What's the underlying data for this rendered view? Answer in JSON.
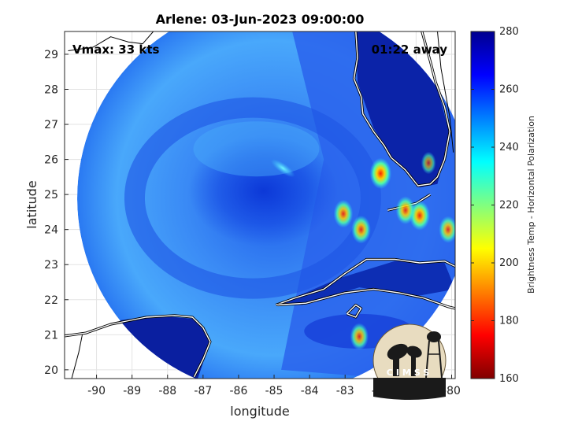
{
  "chart_data": {
    "type": "heatmap",
    "title": "Arlene: 03-Jun-2023 09:00:00",
    "xlabel": "longitude",
    "ylabel": "latitude",
    "xlim": [
      -90.9,
      -79.9
    ],
    "ylim": [
      19.75,
      29.65
    ],
    "x_ticks": [
      -90,
      -89,
      -88,
      -87,
      -86,
      -85,
      -84,
      -83,
      -82,
      -81,
      -80
    ],
    "y_ticks": [
      20,
      21,
      22,
      23,
      24,
      25,
      26,
      27,
      28,
      29
    ],
    "grid": true,
    "annotations": {
      "vmax": "Vmax: 33 kts",
      "time_offset": "01:22 away",
      "logo_text": "CIMSS"
    },
    "colorbar": {
      "label": "Brightness Temp - Horizontal Polarization",
      "range": [
        160,
        280
      ],
      "ticks": [
        160,
        180,
        200,
        220,
        240,
        260,
        280
      ],
      "colormap": "jet"
    },
    "swath": {
      "center_lon": -85.0,
      "center_lat": 24.9,
      "typical_value": 252,
      "edge_value": 262,
      "storm_core_value": 264,
      "land_value": 276
    },
    "warm_cells": [
      {
        "lon": -82.0,
        "lat": 25.6,
        "value": 192
      },
      {
        "lon": -80.9,
        "lat": 24.4,
        "value": 198
      },
      {
        "lon": -83.05,
        "lat": 24.45,
        "value": 205
      },
      {
        "lon": -82.55,
        "lat": 24.0,
        "value": 205
      },
      {
        "lon": -80.1,
        "lat": 24.0,
        "value": 210
      },
      {
        "lon": -82.6,
        "lat": 20.95,
        "value": 210
      },
      {
        "lon": -81.3,
        "lat": 24.55,
        "value": 205
      },
      {
        "lon": -80.65,
        "lat": 25.9,
        "value": 230
      }
    ]
  }
}
